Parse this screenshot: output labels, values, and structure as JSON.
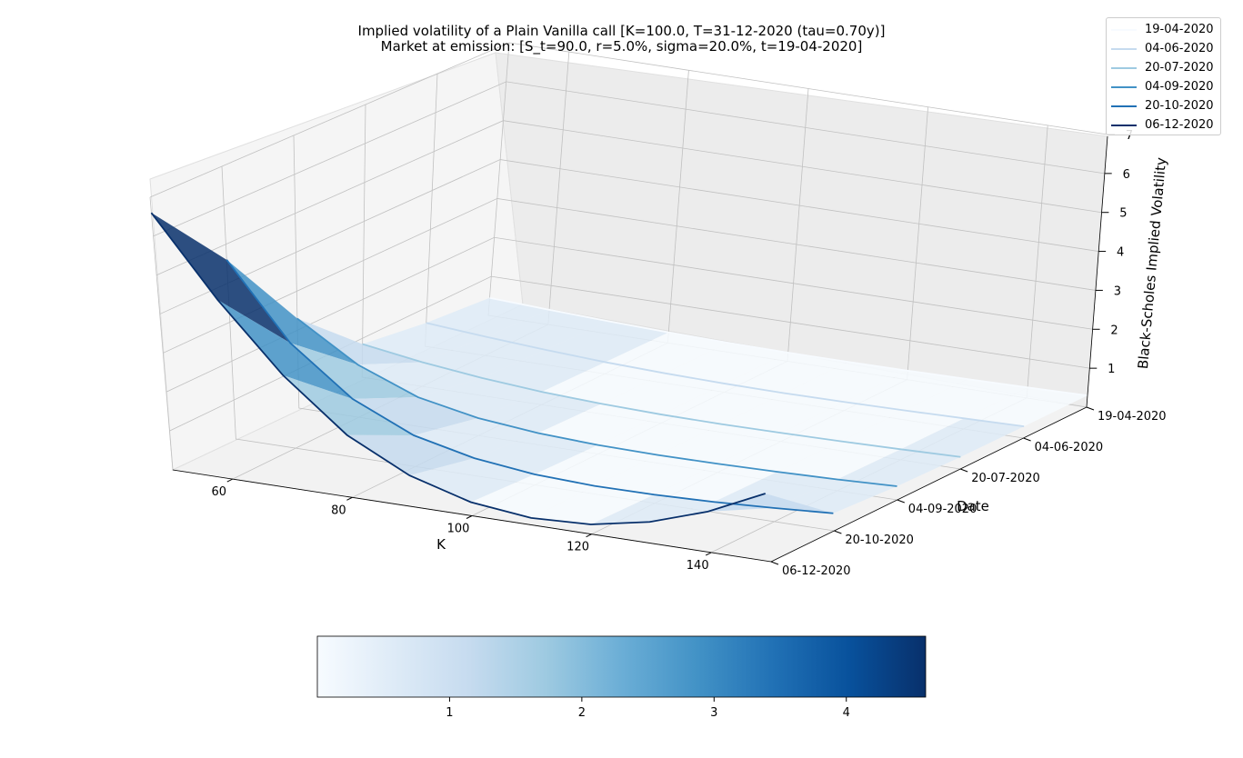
{
  "chart_data": {
    "type": "surface",
    "title": "Implied volatility of a Plain Vanilla call [K=100.0, T=31-12-2020 (tau=0.70y)]",
    "subtitle": "Market at emission: [S_t=90.0, r=5.0%, sigma=20.0%, t=19-04-2020]",
    "xlabel": "K",
    "ylabel": "Date",
    "zlabel": "Black-Scholes Implied Volatility",
    "x_ticks": [
      "60",
      "80",
      "100",
      "120",
      "140"
    ],
    "y_ticks": [
      "19-04-2020",
      "04-06-2020",
      "20-07-2020",
      "04-09-2020",
      "20-10-2020",
      "06-12-2020"
    ],
    "z_ticks": [
      "1",
      "2",
      "3",
      "4",
      "5",
      "6",
      "7"
    ],
    "xlim": [
      50,
      150
    ],
    "zlim": [
      0,
      7
    ],
    "colorbar_ticks": [
      "1",
      "2",
      "3",
      "4"
    ],
    "colorbar_range": [
      0,
      4.6
    ],
    "colormap": "Blues",
    "legend_placement": "top-right",
    "grid": true,
    "series": [
      {
        "name": "19-04-2020",
        "color": "#f7fbff",
        "x": [
          50,
          60,
          70,
          80,
          90,
          100,
          110,
          120,
          130,
          140,
          150
        ],
        "y": [
          0.45,
          0.38,
          0.32,
          0.27,
          0.24,
          0.22,
          0.22,
          0.23,
          0.25,
          0.27,
          0.3
        ]
      },
      {
        "name": "04-06-2020",
        "color": "#c6dbef",
        "x": [
          50,
          60,
          70,
          80,
          90,
          100,
          110,
          120,
          130,
          140,
          150
        ],
        "y": [
          0.6,
          0.48,
          0.38,
          0.3,
          0.25,
          0.22,
          0.21,
          0.22,
          0.24,
          0.27,
          0.3
        ]
      },
      {
        "name": "20-07-2020",
        "color": "#9ecae1",
        "x": [
          50,
          60,
          70,
          80,
          90,
          100,
          110,
          120,
          130,
          140,
          150
        ],
        "y": [
          0.85,
          0.62,
          0.45,
          0.33,
          0.26,
          0.22,
          0.21,
          0.22,
          0.24,
          0.27,
          0.31
        ]
      },
      {
        "name": "04-09-2020",
        "color": "#4292c6",
        "x": [
          50,
          60,
          70,
          80,
          90,
          100,
          110,
          120,
          130,
          140,
          150
        ],
        "y": [
          2.3,
          1.35,
          0.75,
          0.45,
          0.3,
          0.23,
          0.21,
          0.22,
          0.25,
          0.29,
          0.35
        ]
      },
      {
        "name": "20-10-2020",
        "color": "#2171b5",
        "x": [
          50,
          60,
          70,
          80,
          90,
          100,
          110,
          120,
          130,
          140,
          150
        ],
        "y": [
          4.6,
          2.7,
          1.5,
          0.8,
          0.45,
          0.27,
          0.21,
          0.22,
          0.27,
          0.35,
          0.45
        ]
      },
      {
        "name": "06-12-2020",
        "color": "#08306b",
        "x": [
          50,
          60,
          70,
          80,
          90,
          100,
          110,
          120,
          130,
          140,
          150
        ],
        "y": [
          6.6,
          4.6,
          2.9,
          1.6,
          0.8,
          0.35,
          0.18,
          0.25,
          0.55,
          1.05,
          1.75
        ]
      }
    ]
  }
}
